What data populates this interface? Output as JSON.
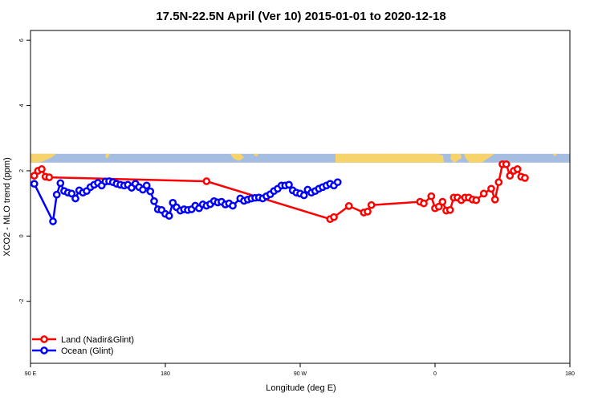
{
  "chart_data": {
    "type": "line",
    "title": "17.5N-22.5N April (Ver 10)   2015-01-01 to 2020-12-18",
    "xlabel": "Longitude (deg E)",
    "ylabel": "XCO2 - MLO trend (ppm)",
    "xlim": [
      90,
      450
    ],
    "ylim": [
      -3.9,
      6.3
    ],
    "x_ticks": [
      {
        "value": 90,
        "label": "90 E"
      },
      {
        "value": 180,
        "label": "180"
      },
      {
        "value": 270,
        "label": "90 W"
      },
      {
        "value": 360,
        "label": "0"
      },
      {
        "value": 450,
        "label": "180"
      }
    ],
    "y_ticks": [
      {
        "value": -2,
        "label": "-2"
      },
      {
        "value": 0,
        "label": "0"
      },
      {
        "value": 2,
        "label": "2"
      },
      {
        "value": 4,
        "label": "4"
      },
      {
        "value": 6,
        "label": "6"
      }
    ],
    "map_strip": {
      "y_bottom": 2.25,
      "y_top": 2.52,
      "ocean_color": "#a5bde0",
      "land_color": "#f7d36b"
    },
    "legend": {
      "position": "bottom-left",
      "entries": [
        "Land (Nadir&Glint)",
        "Ocean (Glint)"
      ]
    },
    "series": [
      {
        "name": "Land (Nadir&Glint)",
        "color": "#ff0000",
        "points": [
          [
            92.5,
            1.85
          ],
          [
            95,
            2.0
          ],
          [
            97.5,
            2.05
          ],
          [
            100,
            1.82
          ],
          [
            102.5,
            1.8
          ],
          [
            207.5,
            1.68
          ],
          [
            290,
            0.52
          ],
          [
            292.5,
            0.58
          ],
          [
            302.5,
            0.92
          ],
          [
            312.5,
            0.72
          ],
          [
            315,
            0.75
          ],
          [
            317.5,
            0.95
          ],
          [
            350,
            1.05
          ],
          [
            352.5,
            1.0
          ],
          [
            357.5,
            1.22
          ],
          [
            360,
            0.85
          ],
          [
            362.5,
            0.9
          ],
          [
            365,
            1.05
          ],
          [
            367.5,
            0.78
          ],
          [
            370,
            0.8
          ],
          [
            372.5,
            1.18
          ],
          [
            375,
            1.18
          ],
          [
            377.5,
            1.1
          ],
          [
            380,
            1.18
          ],
          [
            382.5,
            1.18
          ],
          [
            385,
            1.12
          ],
          [
            387.5,
            1.1
          ],
          [
            392.5,
            1.3
          ],
          [
            397.5,
            1.45
          ],
          [
            400,
            1.12
          ],
          [
            402.5,
            1.65
          ],
          [
            405,
            2.2
          ],
          [
            407.5,
            2.2
          ],
          [
            410,
            1.85
          ],
          [
            412.5,
            2.0
          ],
          [
            415,
            2.05
          ],
          [
            417.5,
            1.82
          ],
          [
            420,
            1.78
          ]
        ]
      },
      {
        "name": "Ocean (Glint)",
        "color": "#0000ff",
        "points": [
          [
            92.5,
            1.6
          ],
          [
            105,
            0.45
          ],
          [
            107.5,
            1.27
          ],
          [
            110,
            1.62
          ],
          [
            112.5,
            1.38
          ],
          [
            115,
            1.33
          ],
          [
            117.5,
            1.3
          ],
          [
            120,
            1.15
          ],
          [
            122.5,
            1.4
          ],
          [
            125,
            1.33
          ],
          [
            127.5,
            1.38
          ],
          [
            130,
            1.5
          ],
          [
            132.5,
            1.57
          ],
          [
            135,
            1.63
          ],
          [
            137.5,
            1.55
          ],
          [
            140,
            1.67
          ],
          [
            142.5,
            1.68
          ],
          [
            145,
            1.65
          ],
          [
            147.5,
            1.6
          ],
          [
            150,
            1.57
          ],
          [
            152.5,
            1.55
          ],
          [
            155,
            1.57
          ],
          [
            157.5,
            1.48
          ],
          [
            160,
            1.6
          ],
          [
            162.5,
            1.5
          ],
          [
            165,
            1.42
          ],
          [
            167.5,
            1.55
          ],
          [
            170,
            1.37
          ],
          [
            172.5,
            1.07
          ],
          [
            175,
            0.82
          ],
          [
            177.5,
            0.8
          ],
          [
            180,
            0.68
          ],
          [
            182.5,
            0.62
          ],
          [
            185,
            1.02
          ],
          [
            187.5,
            0.88
          ],
          [
            190,
            0.78
          ],
          [
            192.5,
            0.82
          ],
          [
            195,
            0.8
          ],
          [
            197.5,
            0.82
          ],
          [
            200,
            0.93
          ],
          [
            202.5,
            0.85
          ],
          [
            205,
            0.97
          ],
          [
            207.5,
            0.93
          ],
          [
            210,
            0.98
          ],
          [
            212.5,
            1.07
          ],
          [
            215,
            1.03
          ],
          [
            217.5,
            1.05
          ],
          [
            220,
            0.97
          ],
          [
            222.5,
            1.0
          ],
          [
            225,
            0.93
          ],
          [
            230,
            1.15
          ],
          [
            232.5,
            1.08
          ],
          [
            235,
            1.12
          ],
          [
            237.5,
            1.15
          ],
          [
            240,
            1.17
          ],
          [
            242.5,
            1.18
          ],
          [
            245,
            1.15
          ],
          [
            247.5,
            1.22
          ],
          [
            250,
            1.28
          ],
          [
            252.5,
            1.38
          ],
          [
            255,
            1.45
          ],
          [
            257.5,
            1.55
          ],
          [
            260,
            1.55
          ],
          [
            262.5,
            1.57
          ],
          [
            265,
            1.4
          ],
          [
            267.5,
            1.33
          ],
          [
            270,
            1.3
          ],
          [
            272.5,
            1.25
          ],
          [
            275,
            1.42
          ],
          [
            277.5,
            1.33
          ],
          [
            280,
            1.38
          ],
          [
            282.5,
            1.45
          ],
          [
            285,
            1.5
          ],
          [
            287.5,
            1.55
          ],
          [
            290,
            1.6
          ],
          [
            292.5,
            1.55
          ],
          [
            295,
            1.65
          ]
        ]
      }
    ]
  }
}
